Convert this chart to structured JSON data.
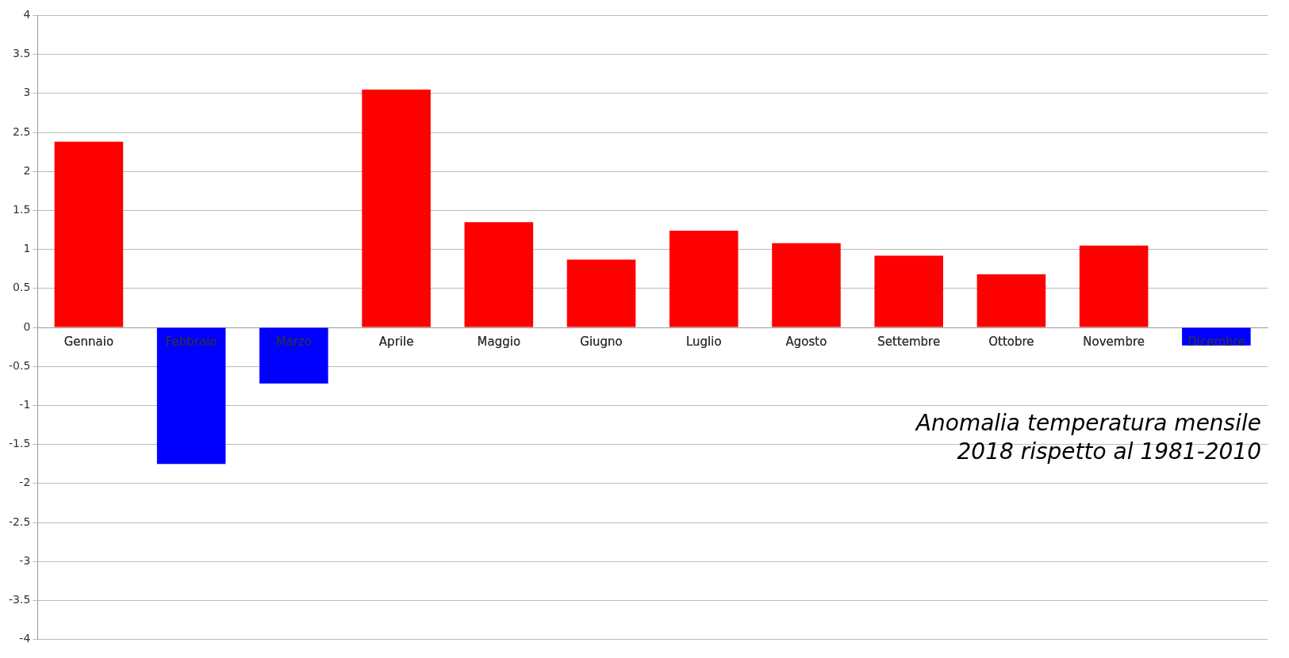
{
  "chart_data": {
    "type": "bar",
    "categories": [
      "Gennaio",
      "Febbraio",
      "Marzo",
      "Aprile",
      "Maggio",
      "Giugno",
      "Luglio",
      "Agosto",
      "Settembre",
      "Ottobre",
      "Novembre",
      "Dicembre"
    ],
    "values": [
      2.38,
      -1.75,
      -0.72,
      3.05,
      1.35,
      0.87,
      1.24,
      1.08,
      0.92,
      0.68,
      1.05,
      -0.23
    ],
    "colors": [
      "#ff0000",
      "#0000ff",
      "#0000ff",
      "#ff0000",
      "#ff0000",
      "#ff0000",
      "#ff0000",
      "#ff0000",
      "#ff0000",
      "#ff0000",
      "#ff0000",
      "#0000ff"
    ],
    "ylim": [
      -4,
      4
    ],
    "yticks": [
      -4,
      -3.5,
      -3,
      -2.5,
      -2,
      -1.5,
      -1,
      -0.5,
      0,
      0.5,
      1,
      1.5,
      2,
      2.5,
      3,
      3.5,
      4
    ],
    "grid": "y",
    "legend": false,
    "annotations": [
      "Anomalia temperatura mensile\n2018 rispetto al 1981-2010"
    ]
  }
}
